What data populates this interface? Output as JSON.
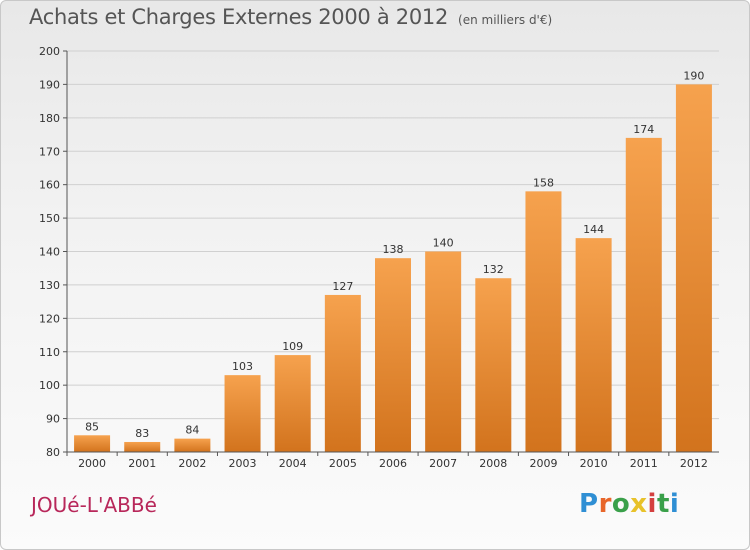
{
  "header": {
    "title": "Achats et Charges Externes 2000 à 2012",
    "subtitle": "(en milliers d'€)"
  },
  "footer": {
    "commune": "JOUé-L'ABBé",
    "logo": {
      "letters": [
        "P",
        "r",
        "o",
        "x",
        "i",
        "t",
        "i"
      ],
      "colors": [
        "#2f8fd4",
        "#e8662a",
        "#3aa04a",
        "#e8c22a",
        "#d43f3f",
        "#3aa04a",
        "#2f8fd4"
      ]
    }
  },
  "colors": {
    "bar_top": "#f6a24e",
    "bar_bottom": "#d2731d",
    "grid": "#d0d0d0",
    "axis": "#555555"
  },
  "chart_data": {
    "type": "bar",
    "title": "Achats et Charges Externes 2000 à 2012",
    "subtitle": "(en milliers d'€)",
    "xlabel": "",
    "ylabel": "",
    "categories": [
      "2000",
      "2001",
      "2002",
      "2003",
      "2004",
      "2005",
      "2006",
      "2007",
      "2008",
      "2009",
      "2010",
      "2011",
      "2012"
    ],
    "values": [
      85,
      83,
      84,
      103,
      109,
      127,
      138,
      140,
      132,
      158,
      144,
      174,
      190
    ],
    "ylim": [
      80,
      200
    ],
    "yticks": [
      80,
      90,
      100,
      110,
      120,
      130,
      140,
      150,
      160,
      170,
      180,
      190,
      200
    ],
    "grid": true,
    "data_labels": true
  }
}
